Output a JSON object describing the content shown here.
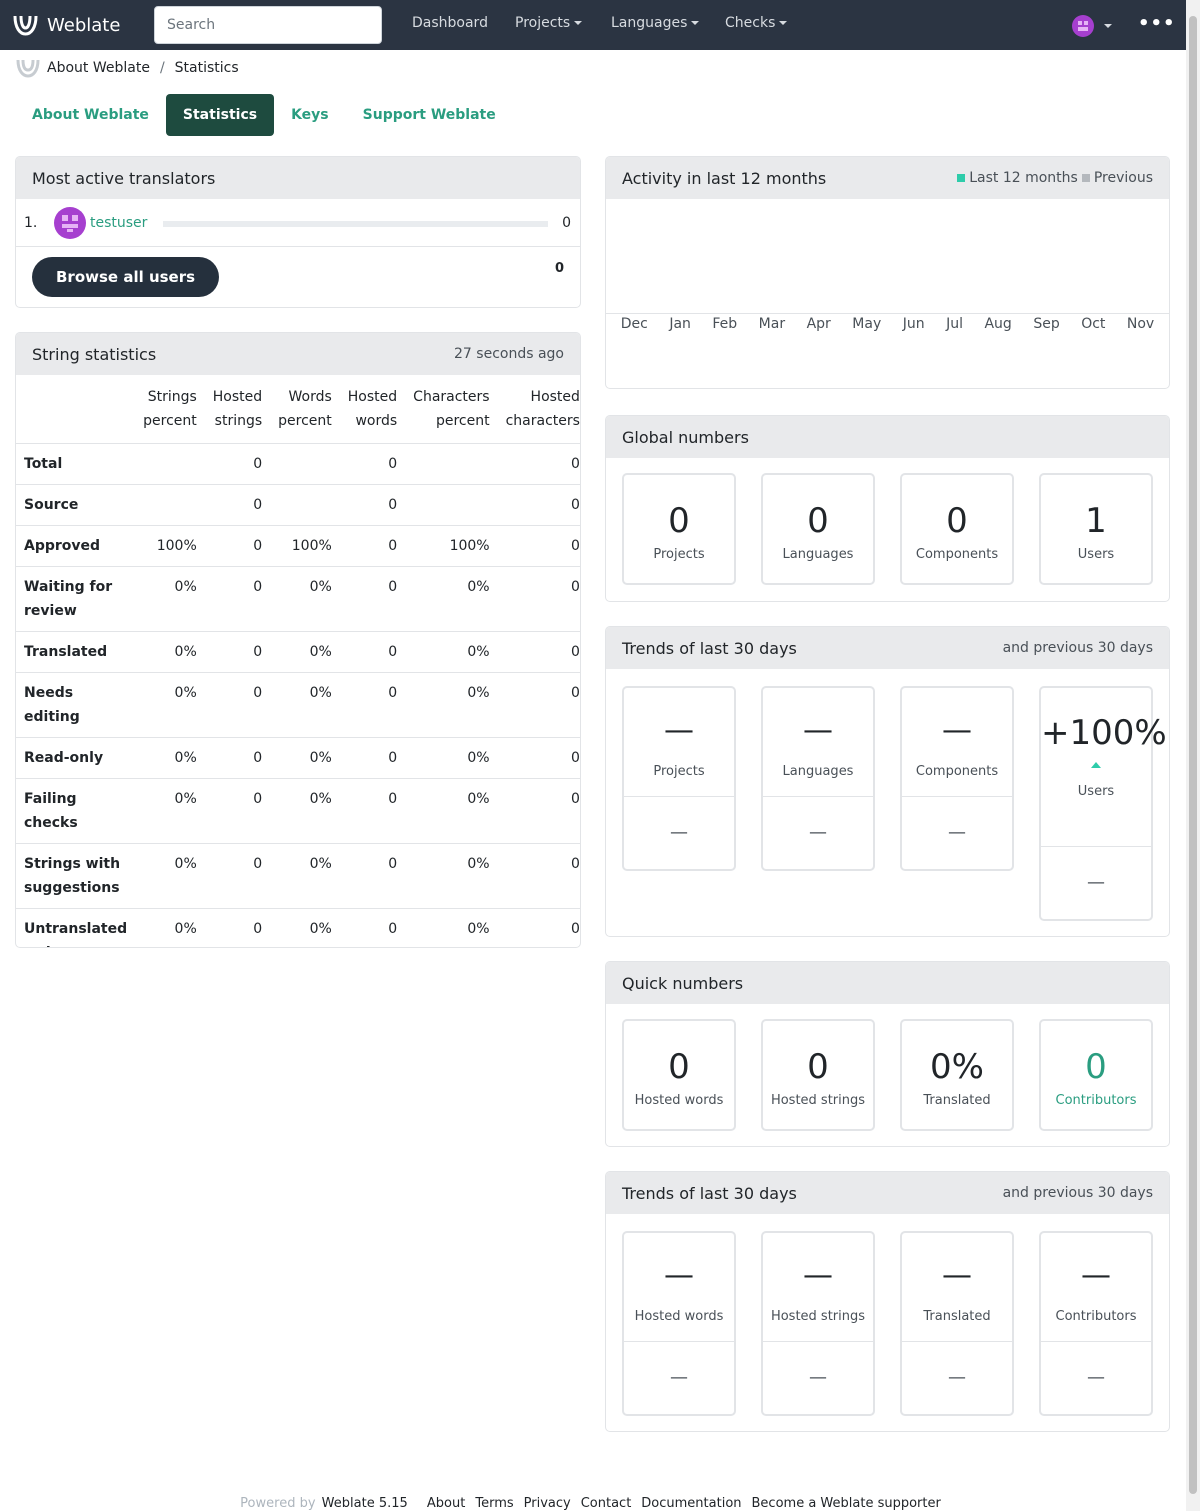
{
  "header": {
    "brand": "Weblate",
    "search_placeholder": "Search",
    "nav": [
      "Dashboard",
      "Projects",
      "Languages",
      "Checks"
    ],
    "more": "•••"
  },
  "breadcrumb": {
    "root": "About Weblate",
    "current": "Statistics"
  },
  "tabs": [
    "About Weblate",
    "Statistics",
    "Keys",
    "Support Weblate"
  ],
  "translators": {
    "title": "Most active translators",
    "rows": [
      {
        "rank": "1.",
        "name": "testuser",
        "count": "0",
        "progress": 0
      }
    ],
    "browse_button": "Browse all users",
    "total": "0"
  },
  "string_stats": {
    "title": "String statistics",
    "updated": "27 seconds ago",
    "columns": [
      [
        "Strings",
        "percent"
      ],
      [
        "Hosted",
        "strings"
      ],
      [
        "Words",
        "percent"
      ],
      [
        "Hosted",
        "words"
      ],
      [
        "Characters",
        "percent"
      ],
      [
        "Hosted",
        "characters"
      ]
    ],
    "rows": [
      {
        "label": "Total",
        "cells": [
          "",
          "0",
          "",
          "0",
          "",
          "0"
        ]
      },
      {
        "label": "Source",
        "cells": [
          "",
          "0",
          "",
          "0",
          "",
          "0"
        ]
      },
      {
        "label": "Approved",
        "cells": [
          "100%",
          "0",
          "100%",
          "0",
          "100%",
          "0"
        ]
      },
      {
        "label": "Waiting for review",
        "cells": [
          "0%",
          "0",
          "0%",
          "0",
          "0%",
          "0"
        ]
      },
      {
        "label": "Translated",
        "cells": [
          "0%",
          "0",
          "0%",
          "0",
          "0%",
          "0"
        ]
      },
      {
        "label": "Needs editing",
        "cells": [
          "0%",
          "0",
          "0%",
          "0",
          "0%",
          "0"
        ]
      },
      {
        "label": "Read-only",
        "cells": [
          "0%",
          "0",
          "0%",
          "0",
          "0%",
          "0"
        ]
      },
      {
        "label": "Failing checks",
        "cells": [
          "0%",
          "0",
          "0%",
          "0",
          "0%",
          "0"
        ]
      },
      {
        "label": "Strings with suggestions",
        "cells": [
          "0%",
          "0",
          "0%",
          "0",
          "0%",
          "0"
        ]
      },
      {
        "label": "Untranslated strings",
        "cells": [
          "0%",
          "0",
          "0%",
          "0",
          "0%",
          "0"
        ]
      }
    ]
  },
  "activity": {
    "title": "Activity in last 12 months",
    "legend": {
      "current": "Last 12 months",
      "previous": "Previous"
    },
    "colors": {
      "current": "#2eccaa",
      "previous": "#b4b8bd"
    },
    "months": [
      "Dec",
      "Jan",
      "Feb",
      "Mar",
      "Apr",
      "May",
      "Jun",
      "Jul",
      "Aug",
      "Sep",
      "Oct",
      "Nov"
    ]
  },
  "global_numbers": {
    "title": "Global numbers",
    "items": [
      {
        "value": "0",
        "label": "Projects"
      },
      {
        "value": "0",
        "label": "Languages"
      },
      {
        "value": "0",
        "label": "Components"
      },
      {
        "value": "1",
        "label": "Users"
      }
    ]
  },
  "trends1": {
    "title": "Trends of last 30 days",
    "hint": "and previous 30 days",
    "items": [
      {
        "value": "—",
        "label": "Projects",
        "previous": "—"
      },
      {
        "value": "—",
        "label": "Languages",
        "previous": "—"
      },
      {
        "value": "—",
        "label": "Components",
        "previous": "—"
      },
      {
        "value": "+100%",
        "label": "Users",
        "previous": "—"
      }
    ]
  },
  "quick_numbers": {
    "title": "Quick numbers",
    "items": [
      {
        "value": "0",
        "label": "Hosted words"
      },
      {
        "value": "0",
        "label": "Hosted strings"
      },
      {
        "value": "0%",
        "label": "Translated"
      },
      {
        "value": "0",
        "label": "Contributors"
      }
    ]
  },
  "trends2": {
    "title": "Trends of last 30 days",
    "hint": "and previous 30 days",
    "items": [
      {
        "value": "—",
        "label": "Hosted words",
        "previous": "—"
      },
      {
        "value": "—",
        "label": "Hosted strings",
        "previous": "—"
      },
      {
        "value": "—",
        "label": "Translated",
        "previous": "—"
      },
      {
        "value": "—",
        "label": "Contributors",
        "previous": "—"
      }
    ]
  },
  "footer": {
    "powered": "Powered by",
    "version": "Weblate 5.15",
    "links": [
      "About",
      "Terms",
      "Privacy",
      "Contact",
      "Documentation",
      "Become a Weblate supporter"
    ]
  }
}
